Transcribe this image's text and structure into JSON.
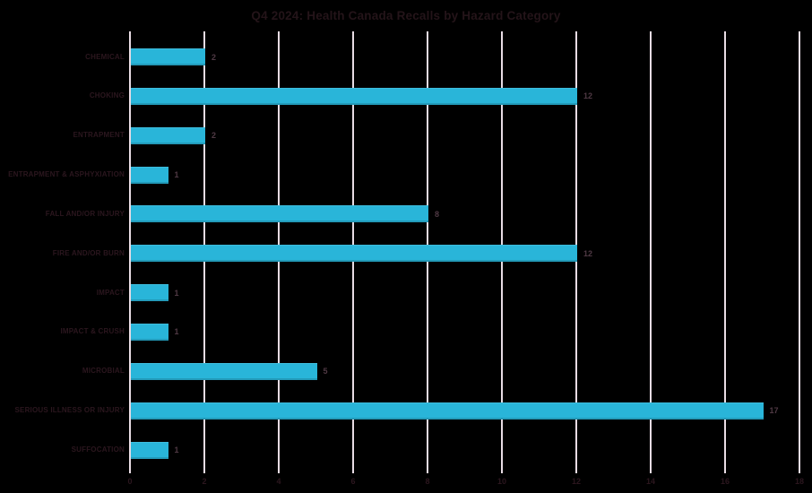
{
  "title": "Q4 2024: Health Canada Recalls by Hazard Category",
  "chart_data": {
    "type": "bar",
    "orientation": "horizontal",
    "title": "Q4 2024: Health Canada Recalls by Hazard Category",
    "categories": [
      "CHEMICAL",
      "CHOKING",
      "ENTRAPMENT",
      "ENTRAPMENT & ASPHYXIATION",
      "FALL AND/OR INJURY",
      "FIRE AND/OR BURN",
      "IMPACT",
      "IMPACT & CRUSH",
      "MICROBIAL",
      "SERIOUS ILLNESS OR INJURY",
      "SUFFOCATION"
    ],
    "values": [
      2,
      12,
      2,
      1,
      8,
      12,
      1,
      1,
      5,
      17,
      1
    ],
    "data_labels": [
      2,
      12,
      2,
      1,
      8,
      12,
      1,
      1,
      5,
      17,
      1
    ],
    "xlabel": "",
    "ylabel": "",
    "xlim": [
      0,
      18
    ],
    "xticks": [
      0,
      2,
      4,
      6,
      8,
      10,
      12,
      14,
      16,
      18
    ],
    "grid": "vertical-only",
    "legend_position": "none"
  },
  "colors": {
    "background": "#000000",
    "bar": "#29b5d9",
    "gridline": "#e8dce4",
    "title_text": "#241419",
    "category_text": "#2b161e",
    "value_text": "#4f3944",
    "tick_text": "#2b161e"
  }
}
